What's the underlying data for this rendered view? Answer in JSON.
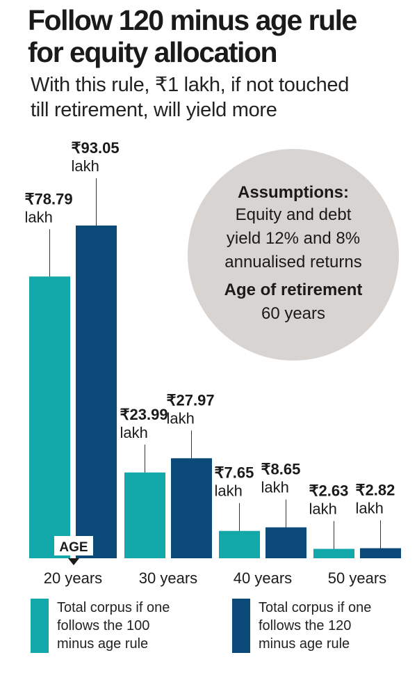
{
  "title_line1": "Follow 120 minus age rule",
  "title_line2": "for equity allocation",
  "subtitle_line1": "With this rule, ₹1 lakh, if not touched",
  "subtitle_line2": "till retirement, will yield more",
  "assumptions": {
    "heading": "Assumptions:",
    "line1": "Equity and debt",
    "line2": "yield 12% and 8%",
    "line3": "annualised returns",
    "age_heading": "Age of retirement",
    "age_value": "60 years"
  },
  "age_label": "AGE",
  "legend": [
    {
      "line1": "Total corpus if one",
      "line2": "follows the 100",
      "line3": "minus age rule",
      "color": "#12a7a8"
    },
    {
      "line1": "Total corpus if one",
      "line2": "follows the 120",
      "line3": "minus age rule",
      "color": "#0b4a78"
    }
  ],
  "chart_data": {
    "type": "bar",
    "categories": [
      "20 years",
      "30 years",
      "40 years",
      "50 years"
    ],
    "series": [
      {
        "name": "Total corpus if one follows the 100 minus age rule",
        "color": "#12a7a8",
        "values": [
          78.79,
          23.99,
          7.65,
          2.63
        ],
        "labels": [
          "₹78.79",
          "₹23.99",
          "₹7.65",
          "₹2.63"
        ]
      },
      {
        "name": "Total corpus if one follows the 120 minus age rule",
        "color": "#0b4a78",
        "values": [
          93.05,
          27.97,
          8.65,
          2.82
        ],
        "labels": [
          "₹93.05",
          "₹27.97",
          "₹8.65",
          "₹2.82"
        ]
      }
    ],
    "unit_label": "lakh",
    "colors": {
      "teal": "#12a7a8",
      "navy": "#0b4a78",
      "circle": "#d8d4d1"
    }
  }
}
